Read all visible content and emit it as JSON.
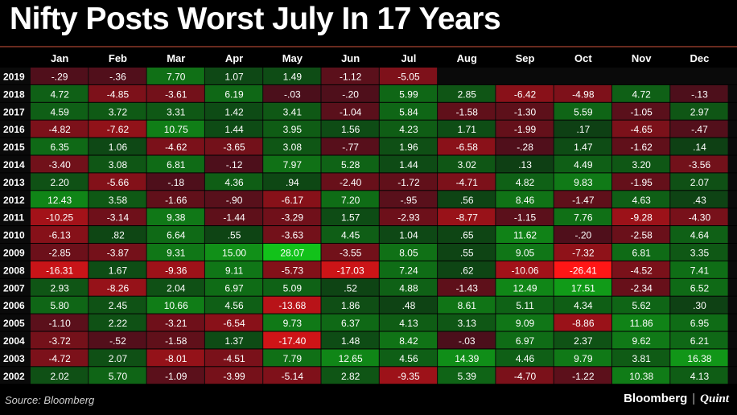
{
  "title": "Nifty Posts Worst July In 17 Years",
  "source": "Source: Bloomberg",
  "brand": {
    "primary": "Bloomberg",
    "separator": "|",
    "secondary": "Quint"
  },
  "colors": {
    "background": "#000000",
    "rule": "#6a2a1f",
    "positive_max": "#12c21a",
    "negative_max": "#ff1616",
    "neutral_pos": "#0e3d14",
    "neutral_neg": "#4a0f1b"
  },
  "chart_data": {
    "type": "heatmap",
    "title": "Nifty Posts Worst July In 17 Years",
    "columns": [
      "Jan",
      "Feb",
      "Mar",
      "Apr",
      "May",
      "Jun",
      "Jul",
      "Aug",
      "Sep",
      "Oct",
      "Nov",
      "Dec"
    ],
    "rows": [
      {
        "year": "2019",
        "values": [
          "-.29",
          "-.36",
          "7.70",
          "1.07",
          "1.49",
          "-1.12",
          "-5.05",
          null,
          null,
          null,
          null,
          null
        ]
      },
      {
        "year": "2018",
        "values": [
          "4.72",
          "-4.85",
          "-3.61",
          "6.19",
          "-.03",
          "-.20",
          "5.99",
          "2.85",
          "-6.42",
          "-4.98",
          "4.72",
          "-.13"
        ]
      },
      {
        "year": "2017",
        "values": [
          "4.59",
          "3.72",
          "3.31",
          "1.42",
          "3.41",
          "-1.04",
          "5.84",
          "-1.58",
          "-1.30",
          "5.59",
          "-1.05",
          "2.97"
        ]
      },
      {
        "year": "2016",
        "values": [
          "-4.82",
          "-7.62",
          "10.75",
          "1.44",
          "3.95",
          "1.56",
          "4.23",
          "1.71",
          "-1.99",
          ".17",
          "-4.65",
          "-.47"
        ]
      },
      {
        "year": "2015",
        "values": [
          "6.35",
          "1.06",
          "-4.62",
          "-3.65",
          "3.08",
          "-.77",
          "1.96",
          "-6.58",
          "-.28",
          "1.47",
          "-1.62",
          ".14"
        ]
      },
      {
        "year": "2014",
        "values": [
          "-3.40",
          "3.08",
          "6.81",
          "-.12",
          "7.97",
          "5.28",
          "1.44",
          "3.02",
          ".13",
          "4.49",
          "3.20",
          "-3.56"
        ]
      },
      {
        "year": "2013",
        "values": [
          "2.20",
          "-5.66",
          "-.18",
          "4.36",
          ".94",
          "-2.40",
          "-1.72",
          "-4.71",
          "4.82",
          "9.83",
          "-1.95",
          "2.07"
        ]
      },
      {
        "year": "2012",
        "values": [
          "12.43",
          "3.58",
          "-1.66",
          "-.90",
          "-6.17",
          "7.20",
          "-.95",
          ".56",
          "8.46",
          "-1.47",
          "4.63",
          ".43"
        ]
      },
      {
        "year": "2011",
        "values": [
          "-10.25",
          "-3.14",
          "9.38",
          "-1.44",
          "-3.29",
          "1.57",
          "-2.93",
          "-8.77",
          "-1.15",
          "7.76",
          "-9.28",
          "-4.30"
        ]
      },
      {
        "year": "2010",
        "values": [
          "-6.13",
          ".82",
          "6.64",
          ".55",
          "-3.63",
          "4.45",
          "1.04",
          ".65",
          "11.62",
          "-.20",
          "-2.58",
          "4.64"
        ]
      },
      {
        "year": "2009",
        "values": [
          "-2.85",
          "-3.87",
          "9.31",
          "15.00",
          "28.07",
          "-3.55",
          "8.05",
          ".55",
          "9.05",
          "-7.32",
          "6.81",
          "3.35"
        ]
      },
      {
        "year": "2008",
        "values": [
          "-16.31",
          "1.67",
          "-9.36",
          "9.11",
          "-5.73",
          "-17.03",
          "7.24",
          ".62",
          "-10.06",
          "-26.41",
          "-4.52",
          "7.41"
        ]
      },
      {
        "year": "2007",
        "values": [
          "2.93",
          "-8.26",
          "2.04",
          "6.97",
          "5.09",
          ".52",
          "4.88",
          "-1.43",
          "12.49",
          "17.51",
          "-2.34",
          "6.52"
        ]
      },
      {
        "year": "2006",
        "values": [
          "5.80",
          "2.45",
          "10.66",
          "4.56",
          "-13.68",
          "1.86",
          ".48",
          "8.61",
          "5.11",
          "4.34",
          "5.62",
          ".30"
        ]
      },
      {
        "year": "2005",
        "values": [
          "-1.10",
          "2.22",
          "-3.21",
          "-6.54",
          "9.73",
          "6.37",
          "4.13",
          "3.13",
          "9.09",
          "-8.86",
          "11.86",
          "6.95"
        ]
      },
      {
        "year": "2004",
        "values": [
          "-3.72",
          "-.52",
          "-1.58",
          "1.37",
          "-17.40",
          "1.48",
          "8.42",
          "-.03",
          "6.97",
          "2.37",
          "9.62",
          "6.21"
        ]
      },
      {
        "year": "2003",
        "values": [
          "-4.72",
          "2.07",
          "-8.01",
          "-4.51",
          "7.79",
          "12.65",
          "4.56",
          "14.39",
          "4.46",
          "9.79",
          "3.81",
          "16.38"
        ]
      },
      {
        "year": "2002",
        "values": [
          "2.02",
          "5.70",
          "-1.09",
          "-3.99",
          "-5.14",
          "2.82",
          "-9.35",
          "5.39",
          "-4.70",
          "-1.22",
          "10.38",
          "4.13"
        ]
      }
    ]
  }
}
